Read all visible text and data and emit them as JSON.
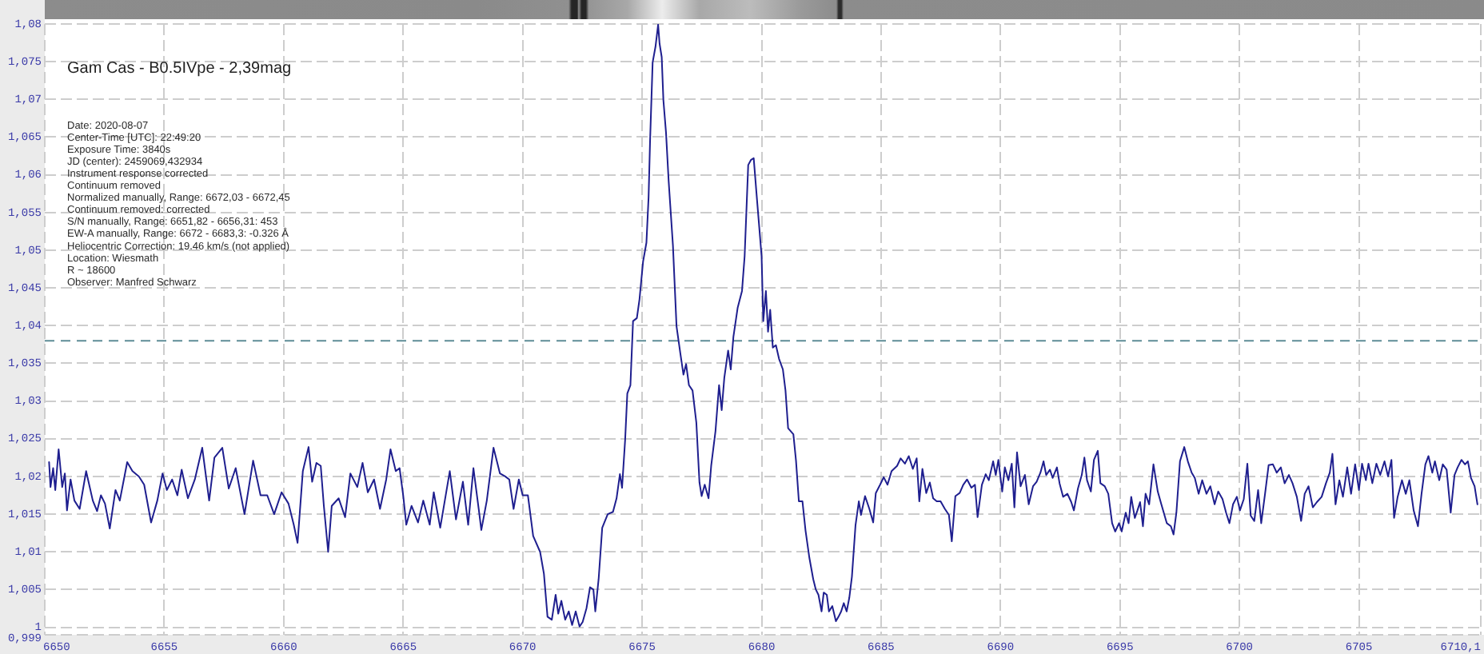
{
  "chart_data": {
    "type": "line",
    "title": "Gam Cas - B0.5IVpe - 2,39mag",
    "annotations": [
      "Date: 2020-08-07",
      "Center-Time [UTC]: 22:49:20",
      "Exposure Time: 3840s",
      "JD (center): 2459069,432934",
      "Instrument response corrected",
      "Continuum removed",
      "Normalized manually, Range: 6672,03 - 6672,45",
      "Continuum removed: corrected",
      "S/N manually, Range: 6651,82 - 6656,31: 453",
      "EW-A manually, Range: 6672 - 6683,3: -0.326 Å",
      "Heliocentric Correction: 19.46 km/s (not applied)",
      "Location: Wiesmath",
      "R ~ 18600",
      "Observer: Manfred Schwarz"
    ],
    "x": [
      6650.18,
      6650.24,
      6650.35,
      6650.44,
      6650.58,
      6650.73,
      6650.84,
      6650.93,
      6651.08,
      6651.24,
      6651.46,
      6651.73,
      6652.01,
      6652.19,
      6652.35,
      6652.52,
      6652.72,
      6652.96,
      6653.14,
      6653.45,
      6653.67,
      6653.94,
      6654.16,
      6654.45,
      6654.71,
      6654.93,
      6655.11,
      6655.33,
      6655.55,
      6655.73,
      6655.99,
      6656.28,
      6656.59,
      6656.88,
      6657.1,
      6657.43,
      6657.7,
      6657.99,
      6658.36,
      6658.72,
      6659.03,
      6659.31,
      6659.6,
      6659.91,
      6660.2,
      6660.42,
      6660.58,
      6660.8,
      6661.04,
      6661.19,
      6661.37,
      6661.55,
      6661.68,
      6661.86,
      6662.01,
      6662.3,
      6662.57,
      6662.79,
      6663.08,
      6663.3,
      6663.52,
      6663.78,
      6664.03,
      6664.29,
      6664.47,
      6664.69,
      6664.85,
      6665,
      6665.13,
      6665.35,
      6665.62,
      6665.84,
      6666.11,
      6666.28,
      6666.55,
      6666.95,
      6667.21,
      6667.5,
      6667.72,
      6667.94,
      6668.16,
      6668.27,
      6668.5,
      6668.78,
      6669.05,
      6669.27,
      6669.44,
      6669.62,
      6669.84,
      6670,
      6670.22,
      6670.44,
      6670.73,
      6670.89,
      6671.04,
      6671.22,
      6671.38,
      6671.49,
      6671.62,
      6671.78,
      6671.93,
      6672.07,
      6672.22,
      6672.38,
      6672.51,
      6672.67,
      6672.82,
      6672.96,
      6673.04,
      6673.18,
      6673.33,
      6673.56,
      6673.78,
      6673.93,
      6674.07,
      6674.16,
      6674.29,
      6674.38,
      6674.51,
      6674.62,
      6674.78,
      6674.89,
      6675.04,
      6675.18,
      6675.27,
      6675.33,
      6675.44,
      6675.56,
      6675.67,
      6675.73,
      6675.82,
      6675.89,
      6676,
      6676.11,
      6676.29,
      6676.44,
      6676.6,
      6676.73,
      6676.84,
      6676.96,
      6677.11,
      6677.27,
      6677.4,
      6677.49,
      6677.62,
      6677.78,
      6677.89,
      6678.07,
      6678.22,
      6678.33,
      6678.44,
      6678.6,
      6678.71,
      6678.82,
      6679,
      6679.18,
      6679.29,
      6679.44,
      6679.56,
      6679.67,
      6679.78,
      6679.89,
      6680,
      6680.07,
      6680.18,
      6680.27,
      6680.36,
      6680.47,
      6680.6,
      6680.73,
      6680.89,
      6681,
      6681.11,
      6681.33,
      6681.44,
      6681.56,
      6681.71,
      6681.84,
      6682,
      6682.16,
      6682.27,
      6682.38,
      6682.51,
      6682.6,
      6682.73,
      6682.82,
      6682.96,
      6683.11,
      6683.22,
      6683.33,
      6683.44,
      6683.56,
      6683.67,
      6683.78,
      6683.93,
      6684.07,
      6684.16,
      6684.33,
      6684.51,
      6684.67,
      6684.78,
      6684.96,
      6685.11,
      6685.27,
      6685.44,
      6685.67,
      6685.82,
      6686,
      6686.16,
      6686.33,
      6686.49,
      6686.6,
      6686.73,
      6686.89,
      6687.04,
      6687.18,
      6687.33,
      6687.49,
      6687.67,
      6687.84,
      6687.96,
      6688.11,
      6688.29,
      6688.44,
      6688.6,
      6688.78,
      6688.93,
      6689.04,
      6689.22,
      6689.38,
      6689.51,
      6689.69,
      6689.8,
      6689.91,
      6690.07,
      6690.18,
      6690.33,
      6690.47,
      6690.58,
      6690.69,
      6690.84,
      6691.02,
      6691.18,
      6691.36,
      6691.51,
      6691.67,
      6691.8,
      6691.91,
      6692.07,
      6692.18,
      6692.36,
      6692.47,
      6692.62,
      6692.8,
      6692.96,
      6693.07,
      6693.24,
      6693.4,
      6693.51,
      6693.62,
      6693.78,
      6693.91,
      6694.07,
      6694.18,
      6694.36,
      6694.51,
      6694.67,
      6694.8,
      6694.96,
      6695.07,
      6695.24,
      6695.36,
      6695.47,
      6695.62,
      6695.73,
      6695.84,
      6695.96,
      6696.07,
      6696.22,
      6696.4,
      6696.58,
      6696.73,
      6696.96,
      6697.13,
      6697.24,
      6697.36,
      6697.51,
      6697.69,
      6697.84,
      6698,
      6698.13,
      6698.29,
      6698.44,
      6698.62,
      6698.78,
      6698.96,
      6699.11,
      6699.29,
      6699.44,
      6699.58,
      6699.73,
      6699.89,
      6700.02,
      6700.18,
      6700.33,
      6700.47,
      6700.62,
      6700.78,
      6700.91,
      6701.07,
      6701.22,
      6701.4,
      6701.56,
      6701.73,
      6701.89,
      6702.07,
      6702.22,
      6702.4,
      6702.58,
      6702.73,
      6702.89,
      6703.07,
      6703.24,
      6703.44,
      6703.62,
      6703.78,
      6703.89,
      6704.02,
      6704.18,
      6704.33,
      6704.51,
      6704.67,
      6704.84,
      6705,
      6705.13,
      6705.29,
      6705.4,
      6705.56,
      6705.73,
      6705.89,
      6706.07,
      6706.22,
      6706.36,
      6706.47,
      6706.62,
      6706.8,
      6706.96,
      6707.11,
      6707.29,
      6707.47,
      6707.62,
      6707.78,
      6707.91,
      6708.07,
      6708.18,
      6708.36,
      6708.51,
      6708.67,
      6708.84,
      6709,
      6709.13,
      6709.29,
      6709.44,
      6709.56,
      6709.69,
      6709.84,
      6709.96
    ],
    "series": [
      {
        "color": "#1f1f8f",
        "values": [
          1.0219,
          1.0186,
          1.0211,
          1.0182,
          1.0236,
          1.0186,
          1.0204,
          1.0155,
          1.0196,
          1.0168,
          1.0157,
          1.0207,
          1.0168,
          1.0154,
          1.0175,
          1.0164,
          1.0131,
          1.0182,
          1.0168,
          1.0219,
          1.0207,
          1.02,
          1.0189,
          1.0139,
          1.0168,
          1.0204,
          1.0182,
          1.0196,
          1.0175,
          1.0209,
          1.0171,
          1.0196,
          1.0238,
          1.0168,
          1.0225,
          1.0238,
          1.0184,
          1.0211,
          1.015,
          1.0221,
          1.0175,
          1.0175,
          1.015,
          1.0179,
          1.0164,
          1.0136,
          1.0112,
          1.0207,
          1.0239,
          1.0193,
          1.0218,
          1.0214,
          1.0161,
          1.01,
          1.0161,
          1.0171,
          1.0146,
          1.0204,
          1.0186,
          1.0218,
          1.0179,
          1.0196,
          1.0157,
          1.0196,
          1.0236,
          1.0207,
          1.0211,
          1.0175,
          1.0136,
          1.0161,
          1.0139,
          1.0168,
          1.0136,
          1.0179,
          1.0132,
          1.0207,
          1.0143,
          1.0193,
          1.0136,
          1.0211,
          1.0157,
          1.0129,
          1.0168,
          1.0238,
          1.0204,
          1.02,
          1.0196,
          1.0157,
          1.0196,
          1.0175,
          1.0175,
          1.0121,
          1.01,
          1.0071,
          1.0014,
          1.001,
          1.0043,
          1.0018,
          1.0035,
          1.001,
          1.0021,
          1.0003,
          1.0021,
          1.0001,
          1.0007,
          1.0025,
          1.0053,
          1.005,
          1.0021,
          1.0064,
          1.0132,
          1.015,
          1.0153,
          1.0171,
          1.0203,
          1.0185,
          1.0249,
          1.031,
          1.0321,
          1.0406,
          1.041,
          1.0435,
          1.0485,
          1.051,
          1.057,
          1.0642,
          1.0749,
          1.077,
          1.0799,
          1.0774,
          1.0756,
          1.0699,
          1.0656,
          1.0592,
          1.0506,
          1.0399,
          1.0363,
          1.0335,
          1.0349,
          1.0321,
          1.0314,
          1.0271,
          1.0192,
          1.0174,
          1.0189,
          1.0171,
          1.0214,
          1.026,
          1.0321,
          1.0288,
          1.0331,
          1.0367,
          1.0342,
          1.0385,
          1.0424,
          1.0446,
          1.0492,
          1.0613,
          1.062,
          1.0622,
          1.0578,
          1.0535,
          1.0492,
          1.0406,
          1.0446,
          1.0392,
          1.0421,
          1.0371,
          1.0374,
          1.0356,
          1.0342,
          1.0314,
          1.0264,
          1.0256,
          1.0221,
          1.0167,
          1.0167,
          1.0128,
          1.0092,
          1.0064,
          1.005,
          1.0043,
          1.0021,
          1.0046,
          1.0043,
          1.0021,
          1.0028,
          1.0008,
          1.0014,
          1.0021,
          1.0032,
          1.0021,
          1.0039,
          1.0067,
          1.0135,
          1.0167,
          1.0149,
          1.0174,
          1.0157,
          1.0139,
          1.0178,
          1.0189,
          1.0199,
          1.0189,
          1.0207,
          1.0214,
          1.0224,
          1.0217,
          1.0227,
          1.021,
          1.0224,
          1.0167,
          1.021,
          1.0178,
          1.0192,
          1.0171,
          1.0167,
          1.0167,
          1.0157,
          1.0149,
          1.0114,
          1.0174,
          1.0178,
          1.0189,
          1.0196,
          1.0185,
          1.0189,
          1.0146,
          1.0189,
          1.0203,
          1.0195,
          1.022,
          1.0202,
          1.0222,
          1.018,
          1.0212,
          1.0195,
          1.0217,
          1.0159,
          1.0232,
          1.0187,
          1.0202,
          1.0163,
          1.0187,
          1.0193,
          1.0205,
          1.022,
          1.0202,
          1.0209,
          1.0198,
          1.0212,
          1.0191,
          1.0173,
          1.0177,
          1.0166,
          1.0155,
          1.0184,
          1.0202,
          1.0225,
          1.0195,
          1.018,
          1.0222,
          1.0234,
          1.0191,
          1.0187,
          1.0177,
          1.0138,
          1.0127,
          1.0138,
          1.0127,
          1.0152,
          1.0138,
          1.0173,
          1.0145,
          1.0155,
          1.0166,
          1.0134,
          1.0177,
          1.0163,
          1.0216,
          1.018,
          1.0163,
          1.0138,
          1.0134,
          1.0123,
          1.0152,
          1.022,
          1.0239,
          1.022,
          1.0205,
          1.0198,
          1.0177,
          1.0195,
          1.0177,
          1.0187,
          1.0163,
          1.018,
          1.017,
          1.0152,
          1.0138,
          1.0163,
          1.0173,
          1.0155,
          1.017,
          1.0217,
          1.0148,
          1.0141,
          1.0182,
          1.0138,
          1.0177,
          1.0215,
          1.0216,
          1.0205,
          1.0212,
          1.0191,
          1.0202,
          1.0191,
          1.0173,
          1.0141,
          1.0177,
          1.0187,
          1.0159,
          1.0166,
          1.0173,
          1.0191,
          1.0205,
          1.023,
          1.0163,
          1.0195,
          1.0173,
          1.0212,
          1.0177,
          1.0216,
          1.0182,
          1.0217,
          1.0195,
          1.0217,
          1.0191,
          1.0217,
          1.0202,
          1.022,
          1.02,
          1.0222,
          1.0145,
          1.0173,
          1.0195,
          1.0177,
          1.0195,
          1.0155,
          1.0134,
          1.0177,
          1.0216,
          1.0227,
          1.0205,
          1.022,
          1.0195,
          1.0216,
          1.0209,
          1.0152,
          1.0202,
          1.0212,
          1.0222,
          1.0216,
          1.022,
          1.0198,
          1.0187,
          1.0163
        ]
      }
    ],
    "xlim": [
      6650,
      6710.1
    ],
    "xticks": [
      6650,
      6655,
      6660,
      6665,
      6670,
      6675,
      6680,
      6685,
      6690,
      6695,
      6700,
      6705,
      {
        "value": 6710.1,
        "label": "6710,1"
      }
    ],
    "ylim": [
      0.999,
      1.08
    ],
    "yticks": [
      {
        "value": 0.999,
        "label": "0,999"
      },
      1,
      {
        "value": 1.005,
        "label": "1,005"
      },
      {
        "value": 1.01,
        "label": "1,01"
      },
      {
        "value": 1.015,
        "label": "1,015"
      },
      {
        "value": 1.02,
        "label": "1,02"
      },
      {
        "value": 1.025,
        "label": "1,025"
      },
      {
        "value": 1.03,
        "label": "1,03"
      },
      {
        "value": 1.035,
        "label": "1,035"
      },
      {
        "value": 1.04,
        "label": "1,04"
      },
      {
        "value": 1.045,
        "label": "1,045"
      },
      {
        "value": 1.05,
        "label": "1,05"
      },
      {
        "value": 1.055,
        "label": "1,055"
      },
      {
        "value": 1.06,
        "label": "1,06"
      },
      {
        "value": 1.065,
        "label": "1,065"
      },
      {
        "value": 1.07,
        "label": "1,07"
      },
      {
        "value": 1.075,
        "label": "1,075"
      },
      {
        "value": 1.08,
        "label": "1,08"
      }
    ],
    "ref_lines": [
      {
        "axis": "y",
        "value": 1.038,
        "color": "#5e8c96",
        "line_style": "dashed"
      }
    ],
    "grid": true
  }
}
